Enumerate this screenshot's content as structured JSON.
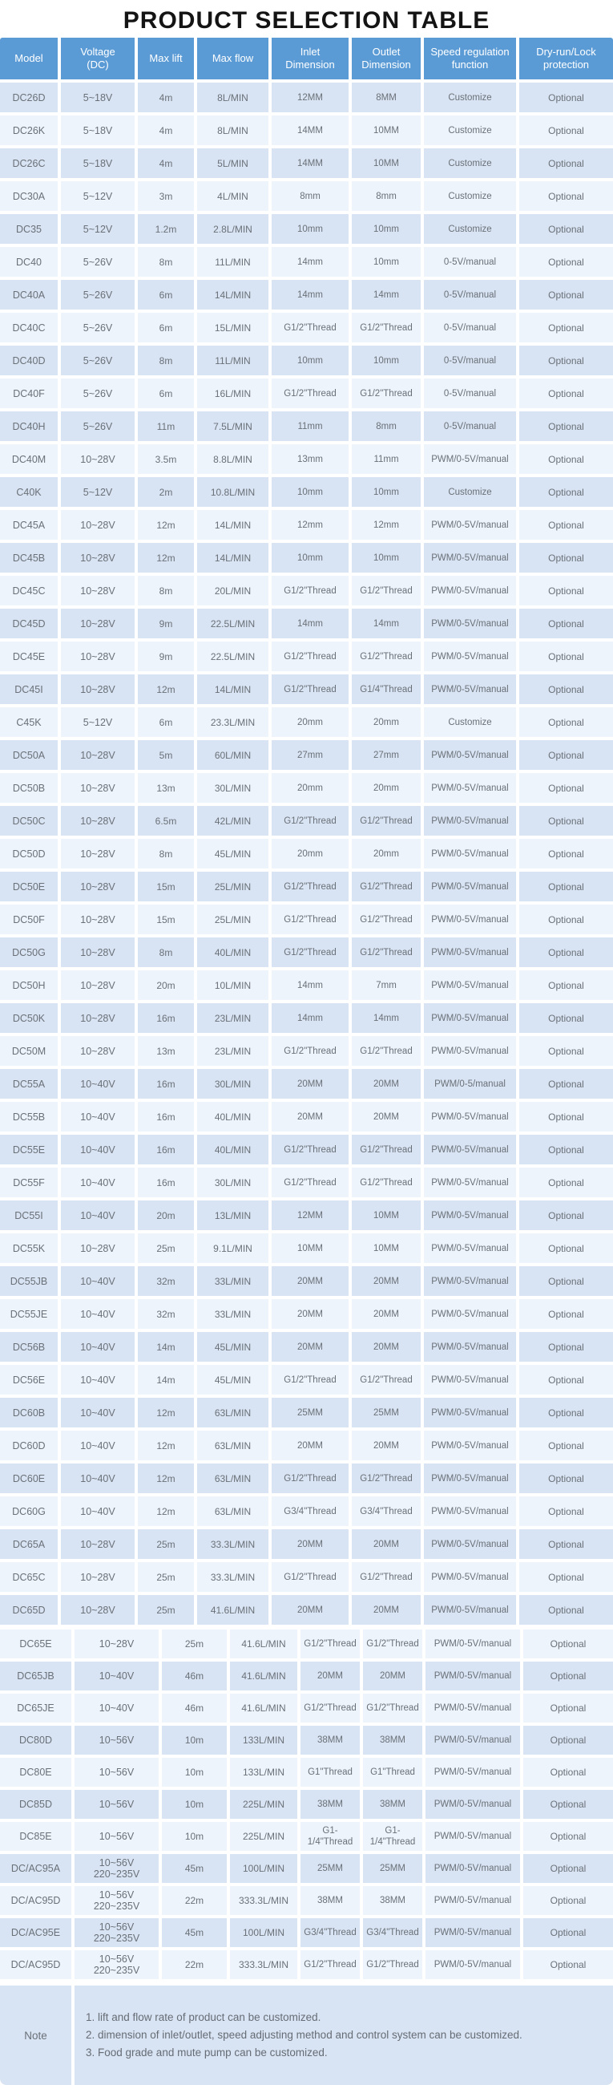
{
  "title": "PRODUCT SELECTION TABLE",
  "columns": [
    "Model",
    "Voltage\n(DC)",
    "Max lift",
    "Max flow",
    "Inlet\nDimension",
    "Outlet\nDimension",
    "Speed regulation\nfunction",
    "Dry-run/Lock\nprotection"
  ],
  "table1": {
    "rows": [
      [
        "DC26D",
        "5~18V",
        "4m",
        "8L/MIN",
        "12MM",
        "8MM",
        "Customize",
        "Optional"
      ],
      [
        "DC26K",
        "5~18V",
        "4m",
        "8L/MIN",
        "14MM",
        "10MM",
        "Customize",
        "Optional"
      ],
      [
        "DC26C",
        "5~18V",
        "4m",
        "5L/MIN",
        "14MM",
        "10MM",
        "Customize",
        "Optional"
      ],
      [
        "DC30A",
        "5~12V",
        "3m",
        "4L/MIN",
        "8mm",
        "8mm",
        "Customize",
        "Optional"
      ],
      [
        "DC35",
        "5~12V",
        "1.2m",
        "2.8L/MIN",
        "10mm",
        "10mm",
        "Customize",
        "Optional"
      ],
      [
        "DC40",
        "5~26V",
        "8m",
        "11L/MIN",
        "14mm",
        "10mm",
        "0-5V/manual",
        "Optional"
      ],
      [
        "DC40A",
        "5~26V",
        "6m",
        "14L/MIN",
        "14mm",
        "14mm",
        "0-5V/manual",
        "Optional"
      ],
      [
        "DC40C",
        "5~26V",
        "6m",
        "15L/MIN",
        "G1/2\"Thread",
        "G1/2\"Thread",
        "0-5V/manual",
        "Optional"
      ],
      [
        "DC40D",
        "5~26V",
        "8m",
        "11L/MIN",
        "10mm",
        "10mm",
        "0-5V/manual",
        "Optional"
      ],
      [
        "DC40F",
        "5~26V",
        "6m",
        "16L/MIN",
        "G1/2\"Thread",
        "G1/2\"Thread",
        "0-5V/manual",
        "Optional"
      ],
      [
        "DC40H",
        "5~26V",
        "11m",
        "7.5L/MIN",
        "11mm",
        "8mm",
        "0-5V/manual",
        "Optional"
      ],
      [
        "DC40M",
        "10~28V",
        "3.5m",
        "8.8L/MIN",
        "13mm",
        "11mm",
        "PWM/0-5V/manual",
        "Optional"
      ],
      [
        "C40K",
        "5~12V",
        "2m",
        "10.8L/MIN",
        "10mm",
        "10mm",
        "Customize",
        "Optional"
      ],
      [
        "DC45A",
        "10~28V",
        "12m",
        "14L/MIN",
        "12mm",
        "12mm",
        "PWM/0-5V/manual",
        "Optional"
      ],
      [
        "DC45B",
        "10~28V",
        "12m",
        "14L/MIN",
        "10mm",
        "10mm",
        "PWM/0-5V/manual",
        "Optional"
      ],
      [
        "DC45C",
        "10~28V",
        "8m",
        "20L/MIN",
        "G1/2\"Thread",
        "G1/2\"Thread",
        "PWM/0-5V/manual",
        "Optional"
      ],
      [
        "DC45D",
        "10~28V",
        "9m",
        "22.5L/MIN",
        "14mm",
        "14mm",
        "PWM/0-5V/manual",
        "Optional"
      ],
      [
        "DC45E",
        "10~28V",
        "9m",
        "22.5L/MIN",
        "G1/2\"Thread",
        "G1/2\"Thread",
        "PWM/0-5V/manual",
        "Optional"
      ],
      [
        "DC45I",
        "10~28V",
        "12m",
        "14L/MIN",
        "G1/2\"Thread",
        "G1/4\"Thread",
        "PWM/0-5V/manual",
        "Optional"
      ],
      [
        "C45K",
        "5~12V",
        "6m",
        "23.3L/MIN",
        "20mm",
        "20mm",
        "Customize",
        "Optional"
      ],
      [
        "DC50A",
        "10~28V",
        "5m",
        "60L/MIN",
        "27mm",
        "27mm",
        "PWM/0-5V/manual",
        "Optional"
      ],
      [
        "DC50B",
        "10~28V",
        "13m",
        "30L/MIN",
        "20mm",
        "20mm",
        "PWM/0-5V/manual",
        "Optional"
      ],
      [
        "DC50C",
        "10~28V",
        "6.5m",
        "42L/MIN",
        "G1/2\"Thread",
        "G1/2\"Thread",
        "PWM/0-5V/manual",
        "Optional"
      ],
      [
        "DC50D",
        "10~28V",
        "8m",
        "45L/MIN",
        "20mm",
        "20mm",
        "PWM/0-5V/manual",
        "Optional"
      ],
      [
        "DC50E",
        "10~28V",
        "15m",
        "25L/MIN",
        "G1/2\"Thread",
        "G1/2\"Thread",
        "PWM/0-5V/manual",
        "Optional"
      ],
      [
        "DC50F",
        "10~28V",
        "15m",
        "25L/MIN",
        "G1/2\"Thread",
        "G1/2\"Thread",
        "PWM/0-5V/manual",
        "Optional"
      ],
      [
        "DC50G",
        "10~28V",
        "8m",
        "40L/MIN",
        "G1/2\"Thread",
        "G1/2\"Thread",
        "PWM/0-5V/manual",
        "Optional"
      ],
      [
        "DC50H",
        "10~28V",
        "20m",
        "10L/MIN",
        "14mm",
        "7mm",
        "PWM/0-5V/manual",
        "Optional"
      ],
      [
        "DC50K",
        "10~28V",
        "16m",
        "23L/MIN",
        "14mm",
        "14mm",
        "PWM/0-5V/manual",
        "Optional"
      ],
      [
        "DC50M",
        "10~28V",
        "13m",
        "23L/MIN",
        "G1/2\"Thread",
        "G1/2\"Thread",
        "PWM/0-5V/manual",
        "Optional"
      ],
      [
        "DC55A",
        "10~40V",
        "16m",
        "30L/MIN",
        "20MM",
        "20MM",
        "PWM/0-5/manual",
        "Optional"
      ],
      [
        "DC55B",
        "10~40V",
        "16m",
        "40L/MIN",
        "20MM",
        "20MM",
        "PWM/0-5V/manual",
        "Optional"
      ],
      [
        "DC55E",
        "10~40V",
        "16m",
        "40L/MIN",
        "G1/2\"Thread",
        "G1/2\"Thread",
        "PWM/0-5V/manual",
        "Optional"
      ],
      [
        "DC55F",
        "10~40V",
        "16m",
        "30L/MIN",
        "G1/2\"Thread",
        "G1/2\"Thread",
        "PWM/0-5V/manual",
        "Optional"
      ],
      [
        "DC55I",
        "10~40V",
        "20m",
        "13L/MIN",
        "12MM",
        "10MM",
        "PWM/0-5V/manual",
        "Optional"
      ],
      [
        "DC55K",
        "10~28V",
        "25m",
        "9.1L/MIN",
        "10MM",
        "10MM",
        "PWM/0-5V/manual",
        "Optional"
      ],
      [
        "DC55JB",
        "10~40V",
        "32m",
        "33L/MIN",
        "20MM",
        "20MM",
        "PWM/0-5V/manual",
        "Optional"
      ],
      [
        "DC55JE",
        "10~40V",
        "32m",
        "33L/MIN",
        "20MM",
        "20MM",
        "PWM/0-5V/manual",
        "Optional"
      ],
      [
        "DC56B",
        "10~40V",
        "14m",
        "45L/MIN",
        "20MM",
        "20MM",
        "PWM/0-5V/manual",
        "Optional"
      ],
      [
        "DC56E",
        "10~40V",
        "14m",
        "45L/MIN",
        "G1/2\"Thread",
        "G1/2\"Thread",
        "PWM/0-5V/manual",
        "Optional"
      ],
      [
        "DC60B",
        "10~40V",
        "12m",
        "63L/MIN",
        "25MM",
        "25MM",
        "PWM/0-5V/manual",
        "Optional"
      ],
      [
        "DC60D",
        "10~40V",
        "12m",
        "63L/MIN",
        "20MM",
        "20MM",
        "PWM/0-5V/manual",
        "Optional"
      ],
      [
        "DC60E",
        "10~40V",
        "12m",
        "63L/MIN",
        "G1/2\"Thread",
        "G1/2\"Thread",
        "PWM/0-5V/manual",
        "Optional"
      ],
      [
        "DC60G",
        "10~40V",
        "12m",
        "63L/MIN",
        "G3/4\"Thread",
        "G3/4\"Thread",
        "PWM/0-5V/manual",
        "Optional"
      ],
      [
        "DC65A",
        "10~28V",
        "25m",
        "33.3L/MIN",
        "20MM",
        "20MM",
        "PWM/0-5V/manual",
        "Optional"
      ],
      [
        "DC65C",
        "10~28V",
        "25m",
        "33.3L/MIN",
        "G1/2\"Thread",
        "G1/2\"Thread",
        "PWM/0-5V/manual",
        "Optional"
      ],
      [
        "DC65D",
        "10~28V",
        "25m",
        "41.6L/MIN",
        "20MM",
        "20MM",
        "PWM/0-5V/manual",
        "Optional"
      ]
    ]
  },
  "table2": {
    "rows": [
      [
        "DC65E",
        "10~28V",
        "25m",
        "41.6L/MIN",
        "G1/2\"Thread",
        "G1/2\"Thread",
        "PWM/0-5V/manual",
        "Optional"
      ],
      [
        "DC65JB",
        "10~40V",
        "46m",
        "41.6L/MIN",
        "20MM",
        "20MM",
        "PWM/0-5V/manual",
        "Optional"
      ],
      [
        "DC65JE",
        "10~40V",
        "46m",
        "41.6L/MIN",
        "G1/2\"Thread",
        "G1/2\"Thread",
        "PWM/0-5V/manual",
        "Optional"
      ],
      [
        "DC80D",
        "10~56V",
        "10m",
        "133L/MIN",
        "38MM",
        "38MM",
        "PWM/0-5V/manual",
        "Optional"
      ],
      [
        "DC80E",
        "10~56V",
        "10m",
        "133L/MIN",
        "G1\"Thread",
        "G1\"Thread",
        "PWM/0-5V/manual",
        "Optional"
      ],
      [
        "DC85D",
        "10~56V",
        "10m",
        "225L/MIN",
        "38MM",
        "38MM",
        "PWM/0-5V/manual",
        "Optional"
      ],
      [
        "DC85E",
        "10~56V",
        "10m",
        "225L/MIN",
        "G1-1/4\"Thread",
        "G1-1/4\"Thread",
        "PWM/0-5V/manual",
        "Optional"
      ],
      [
        "DC/AC95A",
        "10~56V\n220~235V",
        "45m",
        "100L/MIN",
        "25MM",
        "25MM",
        "PWM/0-5V/manual",
        "Optional"
      ],
      [
        "DC/AC95D",
        "10~56V\n220~235V",
        "22m",
        "333.3L/MIN",
        "38MM",
        "38MM",
        "PWM/0-5V/manual",
        "Optional"
      ],
      [
        "DC/AC95E",
        "10~56V\n220~235V",
        "45m",
        "100L/MIN",
        "G3/4\"Thread",
        "G3/4\"Thread",
        "PWM/0-5V/manual",
        "Optional"
      ],
      [
        "DC/AC95D",
        "10~56V\n220~235V",
        "22m",
        "333.3L/MIN",
        "G1/2\"Thread",
        "G1/2\"Thread",
        "PWM/0-5V/manual",
        "Optional"
      ]
    ]
  },
  "note": {
    "label": "Note",
    "lines": [
      "1. lift and flow rate of product can be customized.",
      "2. dimension of inlet/outlet, speed adjusting method and control system can be customized.",
      "3. Food grade and mute pump can be customized."
    ]
  },
  "colors": {
    "header": "#5b9bd5",
    "row_dark": "#d8e4f3",
    "row_light": "#eef4fb",
    "note_bg": "#d8e4f3",
    "text": "#6a7078",
    "header_text": "#ffffff"
  }
}
